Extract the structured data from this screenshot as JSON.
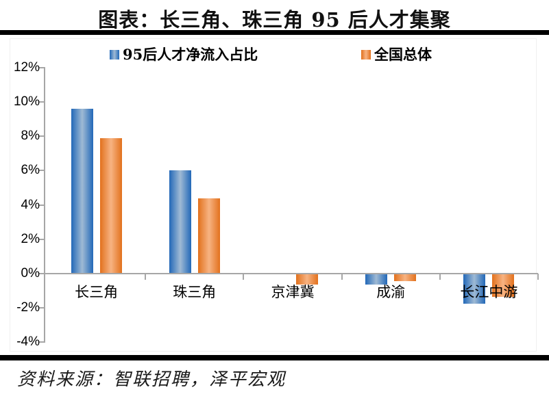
{
  "title": "图表：长三角、珠三角 95 后人才集聚",
  "footer_source": "资料来源：智联招聘，泽平宏观",
  "colors": {
    "series1_edge": "#2268b8",
    "series1_mid": "#9fbad4",
    "series2_edge": "#e2711d",
    "series2_mid": "#f7b382",
    "axis": "#a6a6a6",
    "rule": "#000000"
  },
  "chart_data": {
    "type": "bar",
    "title": "图表：长三角、珠三角 95 后人才集聚",
    "categories": [
      "长三角",
      "珠三角",
      "京津冀",
      "成渝",
      "长江中游"
    ],
    "series": [
      {
        "name": "95后人才净流入占比",
        "color_edge": "#2268b8",
        "color_mid": "#9fbad4",
        "values": [
          9.6,
          6.0,
          0.0,
          -0.6,
          -1.7
        ]
      },
      {
        "name": "全国总体",
        "color_edge": "#e2711d",
        "color_mid": "#f7b382",
        "values": [
          7.9,
          4.4,
          -0.6,
          -0.4,
          -1.3
        ]
      }
    ],
    "xlabel": "",
    "ylabel": "",
    "ylim": [
      -4,
      12
    ],
    "ytick_step": 2,
    "yticks": [
      "12%",
      "10%",
      "8%",
      "6%",
      "4%",
      "2%",
      "0%",
      "-2%",
      "-4%"
    ],
    "legend_position": "top",
    "grid": false
  }
}
